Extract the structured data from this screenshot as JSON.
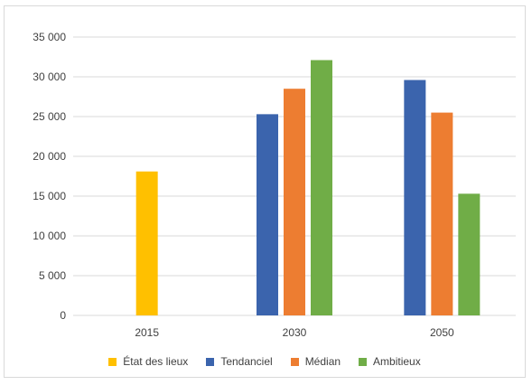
{
  "chart_data": {
    "type": "bar",
    "categories": [
      "2015",
      "2030",
      "2050"
    ],
    "series": [
      {
        "name": "État des lieux",
        "color": "#ffc000",
        "values": [
          18100,
          null,
          null
        ]
      },
      {
        "name": "Tendanciel",
        "color": "#3b64ad",
        "values": [
          null,
          25300,
          29600
        ]
      },
      {
        "name": "Médian",
        "color": "#ed7d31",
        "values": [
          null,
          28500,
          25500
        ]
      },
      {
        "name": "Ambitieux",
        "color": "#70ad47",
        "values": [
          null,
          32100,
          15300
        ]
      }
    ],
    "yticks": [
      "0",
      "5 000",
      "10 000",
      "15 000",
      "20 000",
      "25 000",
      "30 000",
      "35 000"
    ],
    "ylim": [
      0,
      35000
    ],
    "grid": true,
    "legend_position": "bottom"
  }
}
